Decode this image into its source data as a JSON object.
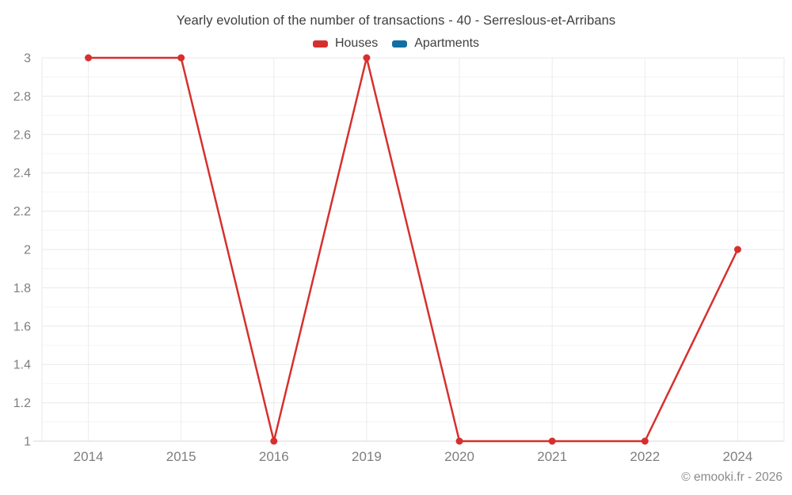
{
  "title": "Yearly evolution of the number of transactions - 40 - Serreslous-et-Arribans",
  "legend": [
    {
      "label": "Houses",
      "color": "#d6302e"
    },
    {
      "label": "Apartments",
      "color": "#1170a3"
    }
  ],
  "footer": {
    "copyright": "© emooki.fr - 2026"
  },
  "chart_data": {
    "type": "line",
    "title": "Yearly evolution of the number of transactions - 40 - Serreslous-et-Arribans",
    "categories": [
      "2014",
      "2015",
      "2016",
      "2019",
      "2020",
      "2021",
      "2022",
      "2024"
    ],
    "series": [
      {
        "name": "Houses",
        "color": "#d6302e",
        "values": [
          3,
          3,
          1,
          3,
          1,
          1,
          1,
          2
        ]
      },
      {
        "name": "Apartments",
        "color": "#1170a3",
        "values": [
          null,
          null,
          null,
          null,
          null,
          null,
          null,
          null
        ]
      }
    ],
    "xlabel": "",
    "ylabel": "",
    "ylim": [
      1,
      3
    ],
    "y_major_step": 0.2,
    "y_minor_step": 0.1,
    "grid": true,
    "legend_position": "top",
    "colors": {
      "major_grid": "#e8e8e8",
      "minor_grid": "#f4f4f4",
      "vertical_grid": "#ececec",
      "axis_line": "#d8d8d8",
      "tick_text": "#7e7e7e"
    }
  }
}
